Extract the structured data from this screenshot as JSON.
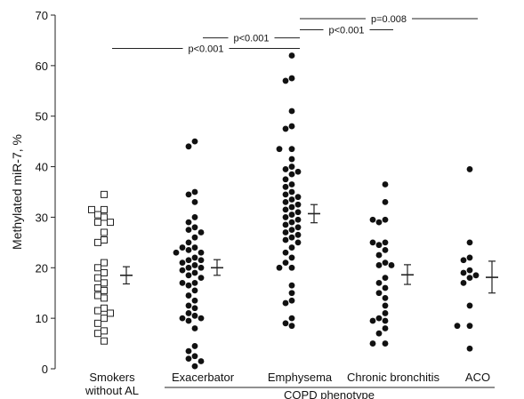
{
  "chart_data": {
    "type": "scatter",
    "ylabel": "Methylated miR-7, %",
    "xlabel": "",
    "ylim": [
      0,
      70
    ],
    "yticks": [
      0,
      10,
      20,
      30,
      40,
      50,
      60,
      70
    ],
    "group_axis_label": "COPD phenotype",
    "categories": [
      {
        "label_lines": [
          "Smokers",
          "without AL"
        ],
        "marker": "open-square"
      },
      {
        "label_lines": [
          "Exacerbator"
        ],
        "marker": "filled-circle"
      },
      {
        "label_lines": [
          "Emphysema"
        ],
        "marker": "filled-circle"
      },
      {
        "label_lines": [
          "Chronic bronchitis"
        ],
        "marker": "filled-circle"
      },
      {
        "label_lines": [
          "ACO"
        ],
        "marker": "filled-circle"
      }
    ],
    "series": [
      {
        "values": [
          34.5,
          31.5,
          31.5,
          30.5,
          30,
          29,
          29,
          27,
          25.5,
          25,
          21,
          20,
          19,
          18,
          17,
          16,
          15.5,
          14.5,
          14,
          12,
          11.5,
          11,
          10,
          9,
          7.5,
          7,
          5.5
        ],
        "mean": 18.5,
        "sem_low": 16.8,
        "sem_high": 20.2
      },
      {
        "values": [
          45,
          44,
          35,
          34.5,
          33,
          30,
          29,
          28,
          27.5,
          27,
          26,
          25,
          24,
          24,
          23.5,
          23,
          23,
          22,
          21.5,
          21.5,
          21,
          20.5,
          20,
          20,
          19.5,
          19,
          18.5,
          18,
          17,
          17,
          16.5,
          15.5,
          14.5,
          13.5,
          12.5,
          12,
          11,
          10.5,
          10,
          10,
          9.5,
          8,
          4.5,
          3.5,
          2.5,
          2,
          1.5,
          0.5
        ],
        "mean": 20.0,
        "sem_low": 18.5,
        "sem_high": 21.6
      },
      {
        "values": [
          62,
          57.5,
          57,
          51,
          48,
          47.5,
          43.5,
          43.5,
          41.5,
          40,
          39.5,
          39,
          38.5,
          37.5,
          36.5,
          36,
          35,
          34.5,
          34,
          33.5,
          33,
          32.5,
          32,
          31.5,
          31,
          30.5,
          30,
          29.5,
          29,
          28.5,
          28,
          27.5,
          27,
          26.5,
          26,
          25.5,
          25,
          24,
          23,
          22,
          21,
          20,
          20,
          16.5,
          15,
          13.5,
          13,
          10,
          9,
          8.5
        ],
        "mean": 30.7,
        "sem_low": 28.9,
        "sem_high": 32.5
      },
      {
        "values": [
          36.5,
          33,
          29.5,
          29.5,
          29,
          25,
          25,
          24.5,
          23.5,
          22.5,
          21,
          20.5,
          20.5,
          18,
          17,
          16,
          15,
          14,
          12.5,
          11,
          10,
          9.5,
          9.5,
          8,
          7,
          5,
          5
        ],
        "mean": 18.6,
        "sem_low": 16.7,
        "sem_high": 20.6
      },
      {
        "values": [
          39.5,
          25,
          22,
          21.5,
          19.5,
          19,
          18.5,
          18,
          17,
          12.5,
          8.5,
          8.5,
          4
        ],
        "mean": 18.1,
        "sem_low": 15.0,
        "sem_high": 21.3
      }
    ],
    "annotations": [
      {
        "text": "p<0.001",
        "from": 0,
        "to": 2,
        "y": 63.4
      },
      {
        "text": "p<0.001",
        "from": 1,
        "to": 2,
        "y": 65.5
      },
      {
        "text": "p=0.008",
        "from": 2,
        "to": 4,
        "y": 69.3
      },
      {
        "text": "p<0.001",
        "from": 2,
        "to": 3,
        "y": 67.1
      }
    ]
  }
}
